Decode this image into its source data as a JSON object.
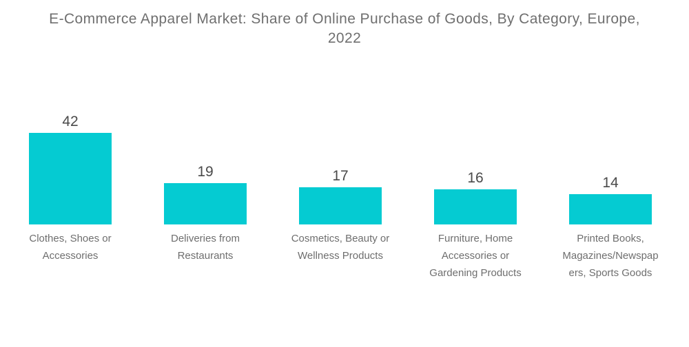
{
  "header": {
    "title": "E-Commerce Apparel Market: Share of Online Purchase of Goods, By Category, Europe, 2022"
  },
  "colors": {
    "background": "#ffffff",
    "bar": "#05CBD2",
    "title_text": "#6f6f6f",
    "value_text": "#4a4a4a",
    "category_text": "#6e6e6e"
  },
  "chart_data": {
    "type": "bar",
    "title": "E-Commerce Apparel Market: Share of Online Purchase of Goods, By Category, Europe, 2022",
    "categories": [
      "Clothes, Shoes or Accessories",
      "Deliveries from Restaurants",
      "Cosmetics, Beauty or Wellness Products",
      "Furniture, Home Accessories or Gardening Products",
      "Printed Books, Magazines/Newspapers, Sports Goods"
    ],
    "values": [
      42,
      19,
      17,
      16,
      14
    ],
    "xlabel": "",
    "ylabel": "",
    "ylim": [
      0,
      45
    ],
    "grid": false,
    "legend": false,
    "axes_visible": false,
    "data_labels": true,
    "bar_color": "#05CBD2"
  }
}
